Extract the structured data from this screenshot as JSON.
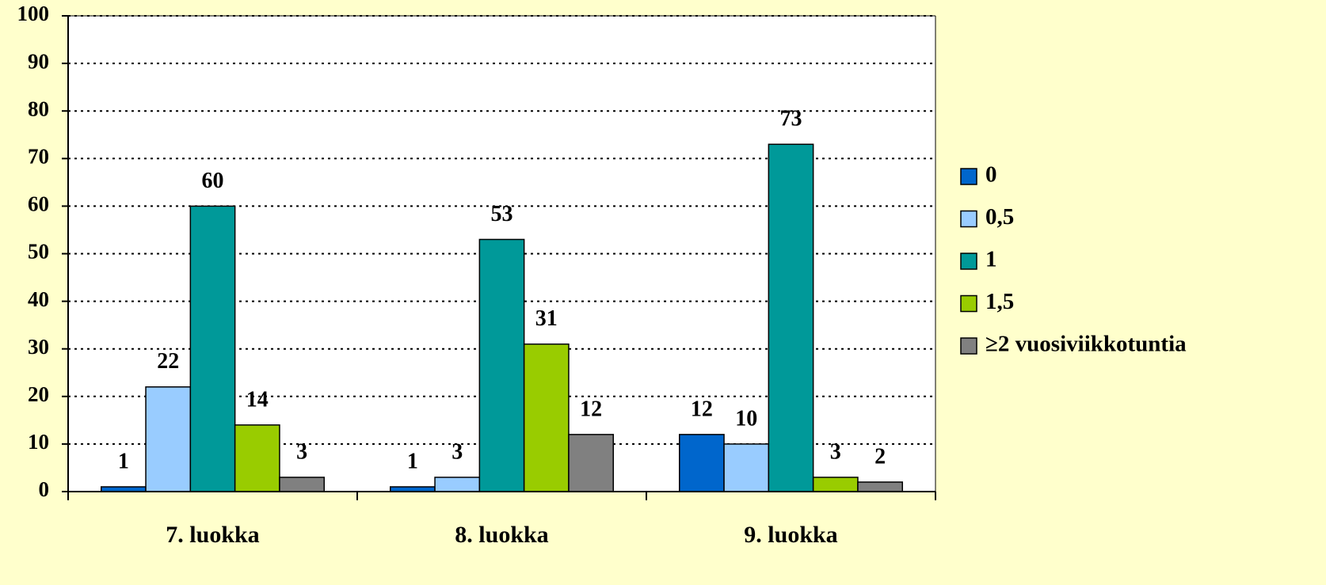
{
  "chart_data": {
    "type": "bar",
    "categories": [
      "7. luokka",
      "8. luokka",
      "9. luokka"
    ],
    "series": [
      {
        "name": "0",
        "color": "#0066cc",
        "values": [
          1,
          1,
          12
        ]
      },
      {
        "name": "0,5",
        "color": "#99ccff",
        "values": [
          22,
          3,
          10
        ]
      },
      {
        "name": "1",
        "color": "#009999",
        "values": [
          60,
          53,
          73
        ]
      },
      {
        "name": "1,5",
        "color": "#99cc00",
        "values": [
          14,
          31,
          3
        ]
      },
      {
        "name": "≥2 vuosiviikkotuntia",
        "color": "#808080",
        "values": [
          3,
          12,
          2
        ]
      }
    ],
    "ylim": [
      0,
      100
    ],
    "yticks": [
      0,
      10,
      20,
      30,
      40,
      50,
      60,
      70,
      80,
      90,
      100
    ],
    "grid": true,
    "legend": "right"
  }
}
